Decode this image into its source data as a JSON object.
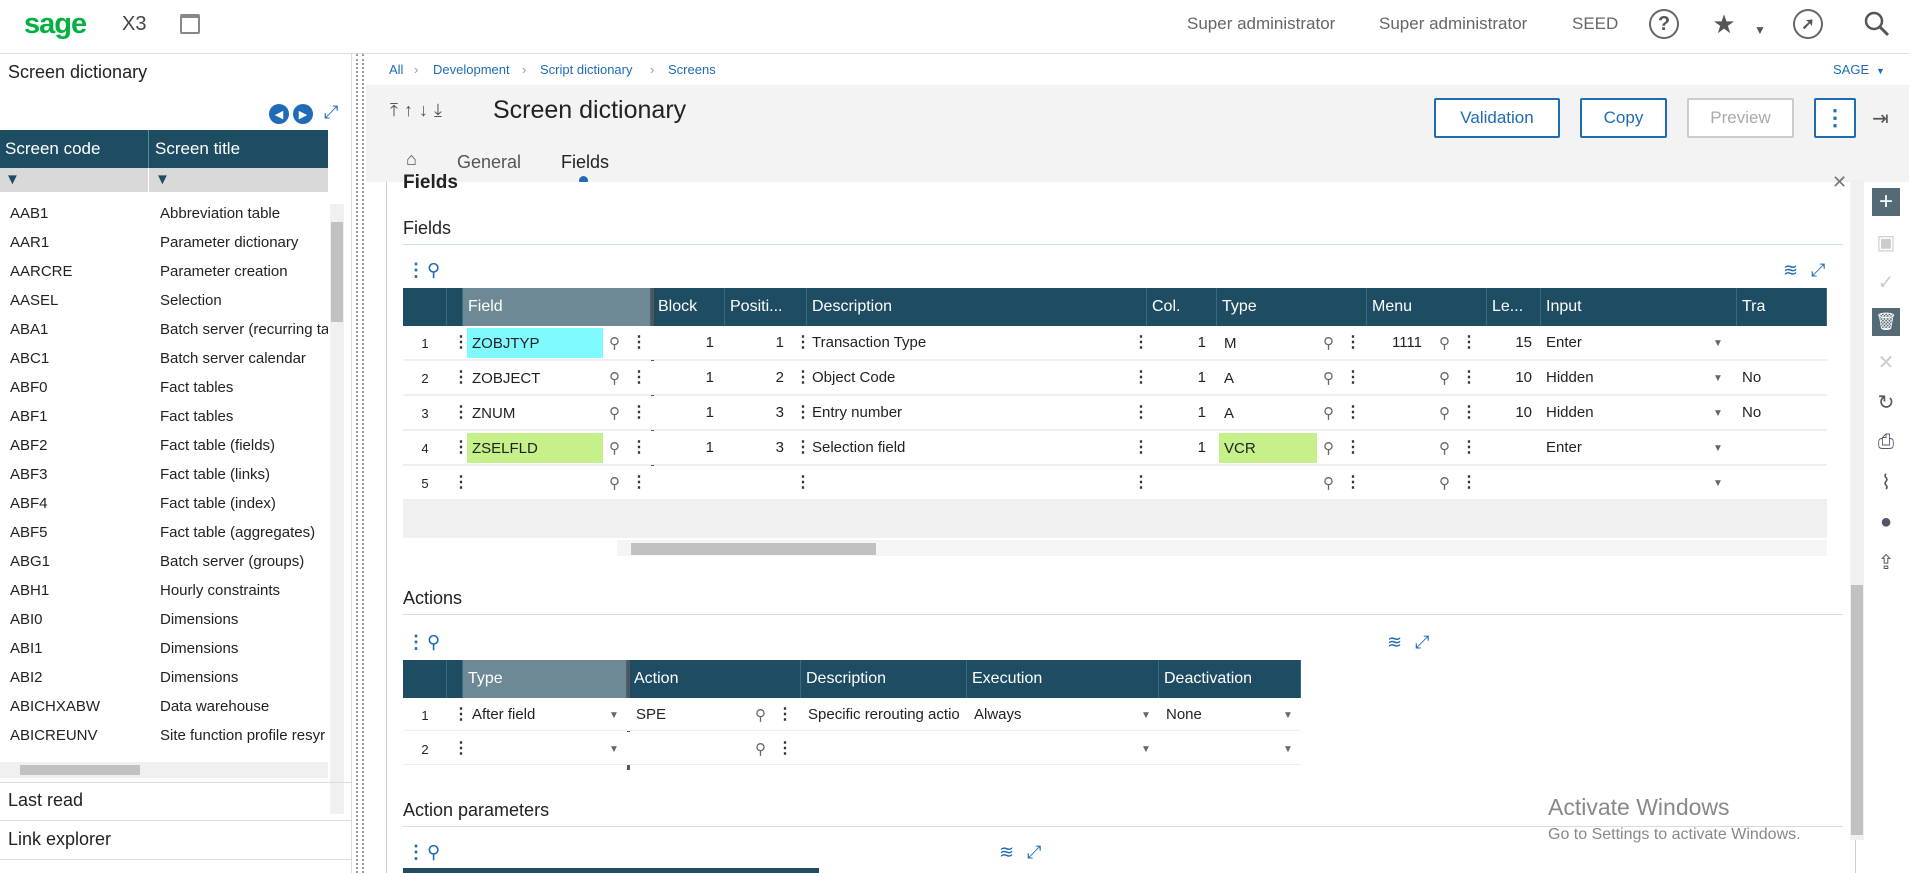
{
  "app": {
    "logo": "sage",
    "product": "X3",
    "user1": "Super administrator",
    "user2": "Super administrator",
    "folder": "SEED"
  },
  "left": {
    "title": "Screen dictionary",
    "col_code": "Screen code",
    "col_title": "Screen title",
    "rows": [
      [
        "AAB1",
        "Abbreviation table"
      ],
      [
        "AAR1",
        "Parameter dictionary"
      ],
      [
        "AARCRE",
        "Parameter creation"
      ],
      [
        "AASEL",
        "Selection"
      ],
      [
        "ABA1",
        "Batch server (recurring ta"
      ],
      [
        "ABC1",
        "Batch server calendar"
      ],
      [
        "ABF0",
        "Fact tables"
      ],
      [
        "ABF1",
        "Fact tables"
      ],
      [
        "ABF2",
        "Fact table (fields)"
      ],
      [
        "ABF3",
        "Fact table (links)"
      ],
      [
        "ABF4",
        "Fact table (index)"
      ],
      [
        "ABF5",
        "Fact table (aggregates)"
      ],
      [
        "ABG1",
        "Batch server (groups)"
      ],
      [
        "ABH1",
        "Hourly constraints"
      ],
      [
        "ABI0",
        "Dimensions"
      ],
      [
        "ABI1",
        "Dimensions"
      ],
      [
        "ABI2",
        "Dimensions"
      ],
      [
        "ABICHXABW",
        "Data warehouse"
      ],
      [
        "ABICREUNV",
        "Site function profile resyr"
      ]
    ],
    "last_read": "Last read",
    "link_explorer": "Link explorer"
  },
  "crumb": {
    "all": "All",
    "dev": "Development",
    "script": "Script dictionary",
    "screens": "Screens",
    "sage": "SAGE"
  },
  "header": {
    "title": "Screen dictionary",
    "validation": "Validation",
    "copy": "Copy",
    "preview": "Preview",
    "tab_general": "General",
    "tab_fields": "Fields"
  },
  "fields": {
    "partial_title": "Fields",
    "title": "Fields",
    "headers": [
      "Field",
      "Block",
      "Positi...",
      "Description",
      "Col.",
      "Type",
      "Menu",
      "Le...",
      "Input",
      "Tra"
    ],
    "rows": [
      {
        "n": "1",
        "field": "ZOBJTYP",
        "block": "1",
        "pos": "1",
        "desc": "Transaction Type",
        "col": "1",
        "type": "M",
        "menu": "1111",
        "len": "15",
        "input": "Enter",
        "tra": ""
      },
      {
        "n": "2",
        "field": "ZOBJECT",
        "block": "1",
        "pos": "2",
        "desc": "Object Code",
        "col": "1",
        "type": "A",
        "menu": "",
        "len": "10",
        "input": "Hidden",
        "tra": "No"
      },
      {
        "n": "3",
        "field": "ZNUM",
        "block": "1",
        "pos": "3",
        "desc": "Entry number",
        "col": "1",
        "type": "A",
        "menu": "",
        "len": "10",
        "input": "Hidden",
        "tra": "No"
      },
      {
        "n": "4",
        "field": "ZSELFLD",
        "block": "1",
        "pos": "3",
        "desc": "Selection field",
        "col": "1",
        "type": "VCR",
        "menu": "",
        "len": "",
        "input": "Enter",
        "tra": ""
      },
      {
        "n": "5",
        "field": "",
        "block": "",
        "pos": "",
        "desc": "",
        "col": "",
        "type": "",
        "menu": "",
        "len": "",
        "input": "",
        "tra": ""
      }
    ],
    "highlight_cyan": "#7ffbff",
    "highlight_green": "#c5f08a"
  },
  "actions": {
    "title": "Actions",
    "headers": [
      "Type",
      "Action",
      "Description",
      "Execution",
      "Deactivation"
    ],
    "rows": [
      {
        "n": "1",
        "type": "After field",
        "action": "SPE",
        "desc": "Specific rerouting actio",
        "exec": "Always",
        "deact": "None"
      },
      {
        "n": "2",
        "type": "",
        "action": "",
        "desc": "",
        "exec": "",
        "deact": ""
      }
    ]
  },
  "action_params": {
    "title": "Action parameters"
  },
  "watermark": {
    "line1": "Activate Windows",
    "line2": "Go to Settings to activate Windows."
  }
}
